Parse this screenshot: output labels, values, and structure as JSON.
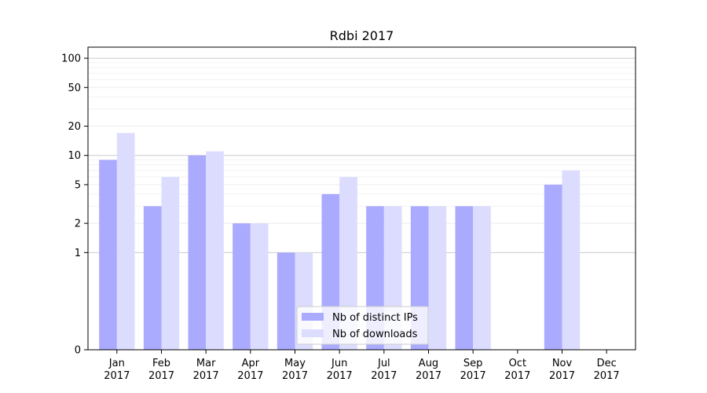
{
  "chart_data": {
    "type": "bar",
    "title": "Rdbi 2017",
    "xlabel": "",
    "ylabel": "",
    "y_scale": "symlog",
    "ylim": [
      0,
      130
    ],
    "yticks": [
      0,
      1,
      2,
      5,
      10,
      20,
      50,
      100
    ],
    "categories": [
      "Jan\n2017",
      "Feb\n2017",
      "Mar\n2017",
      "Apr\n2017",
      "May\n2017",
      "Jun\n2017",
      "Jul\n2017",
      "Aug\n2017",
      "Sep\n2017",
      "Oct\n2017",
      "Nov\n2017",
      "Dec\n2017"
    ],
    "series": [
      {
        "name": "Nb of distinct IPs",
        "color": "#aaaaff",
        "values": [
          9,
          3,
          10,
          2,
          1,
          4,
          3,
          3,
          3,
          0,
          5,
          0
        ]
      },
      {
        "name": "Nb of downloads",
        "color": "#dcdcff",
        "values": [
          17,
          6,
          11,
          2,
          1,
          6,
          3,
          3,
          3,
          0,
          7,
          0
        ]
      }
    ],
    "grid": true,
    "legend_position": "lower center"
  }
}
